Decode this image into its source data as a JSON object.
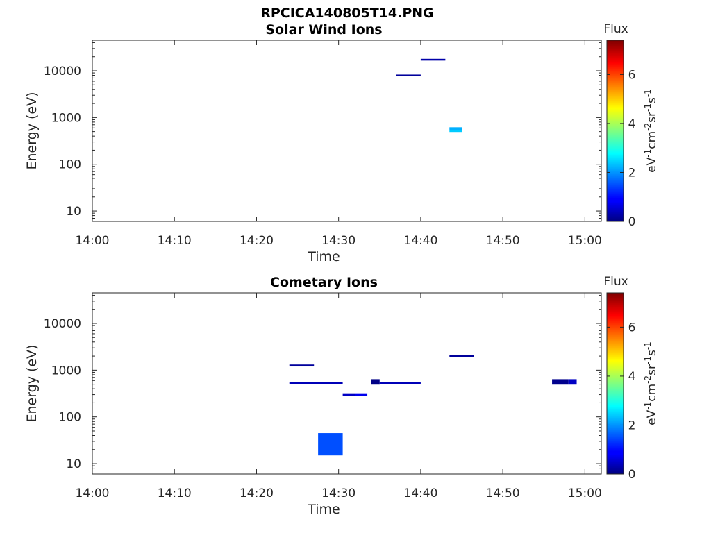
{
  "figure_title": "RPCICA140805T14.PNG",
  "chart_data": [
    {
      "type": "heatmap",
      "title": "Solar Wind Ions",
      "xlabel": "Time",
      "ylabel": "Energy (eV)",
      "yscale": "log",
      "ylim": [
        6,
        45000
      ],
      "xlim": [
        "14:00",
        "15:02"
      ],
      "xticks": [
        "14:00",
        "14:10",
        "14:20",
        "14:30",
        "14:40",
        "14:50",
        "15:00"
      ],
      "yticks": [
        10,
        100,
        1000,
        10000
      ],
      "ytick_labels": [
        "10",
        "100",
        "1000",
        "10000"
      ],
      "colorbar": {
        "label": "Flux",
        "unit": "eV-1cm-2sr-1s-1",
        "range": [
          0,
          7.4
        ],
        "ticks": [
          0,
          2,
          4,
          6
        ],
        "colormap": "jet"
      },
      "cells": [
        {
          "t0": "14:37",
          "t1": "14:40",
          "e0": 7700,
          "e1": 8300,
          "flux": 0.2
        },
        {
          "t0": "14:40",
          "t1": "14:43",
          "e0": 16500,
          "e1": 18000,
          "flux": 0.3
        },
        {
          "t0": "14:43.5",
          "t1": "14:45",
          "e0": 490,
          "e1": 540,
          "flux": 2.4
        },
        {
          "t0": "14:43.5",
          "t1": "14:45",
          "e0": 540,
          "e1": 620,
          "flux": 2.2
        }
      ]
    },
    {
      "type": "heatmap",
      "title": "Cometary Ions",
      "xlabel": "Time",
      "ylabel": "Energy (eV)",
      "yscale": "log",
      "ylim": [
        6,
        45000
      ],
      "xlim": [
        "14:00",
        "15:02"
      ],
      "xticks": [
        "14:00",
        "14:10",
        "14:20",
        "14:30",
        "14:40",
        "14:50",
        "15:00"
      ],
      "yticks": [
        10,
        100,
        1000,
        10000
      ],
      "ytick_labels": [
        "10",
        "100",
        "1000",
        "10000"
      ],
      "colorbar": {
        "label": "Flux",
        "unit": "eV-1cm-2sr-1s-1",
        "range": [
          0,
          7.4
        ],
        "ticks": [
          0,
          2,
          4,
          6
        ],
        "colormap": "jet"
      },
      "cells": [
        {
          "t0": "14:24",
          "t1": "14:27",
          "e0": 1200,
          "e1": 1320,
          "flux": 0.2
        },
        {
          "t0": "14:24",
          "t1": "14:30.5",
          "e0": 500,
          "e1": 560,
          "flux": 0.4
        },
        {
          "t0": "14:27.5",
          "t1": "14:30.5",
          "e0": 15,
          "e1": 45,
          "flux": 1.5
        },
        {
          "t0": "14:30.5",
          "t1": "14:32",
          "e0": 280,
          "e1": 320,
          "flux": 0.5
        },
        {
          "t0": "14:32",
          "t1": "14:33.5",
          "e0": 280,
          "e1": 320,
          "flux": 0.8
        },
        {
          "t0": "14:34",
          "t1": "14:35",
          "e0": 490,
          "e1": 640,
          "flux": 0.05
        },
        {
          "t0": "14:35",
          "t1": "14:40",
          "e0": 500,
          "e1": 560,
          "flux": 0.4
        },
        {
          "t0": "14:43.5",
          "t1": "14:46.5",
          "e0": 1900,
          "e1": 2080,
          "flux": 0.2
        },
        {
          "t0": "14:56",
          "t1": "14:58",
          "e0": 490,
          "e1": 640,
          "flux": 0.1
        },
        {
          "t0": "14:58",
          "t1": "14:59",
          "e0": 490,
          "e1": 640,
          "flux": 0.5
        }
      ]
    }
  ]
}
